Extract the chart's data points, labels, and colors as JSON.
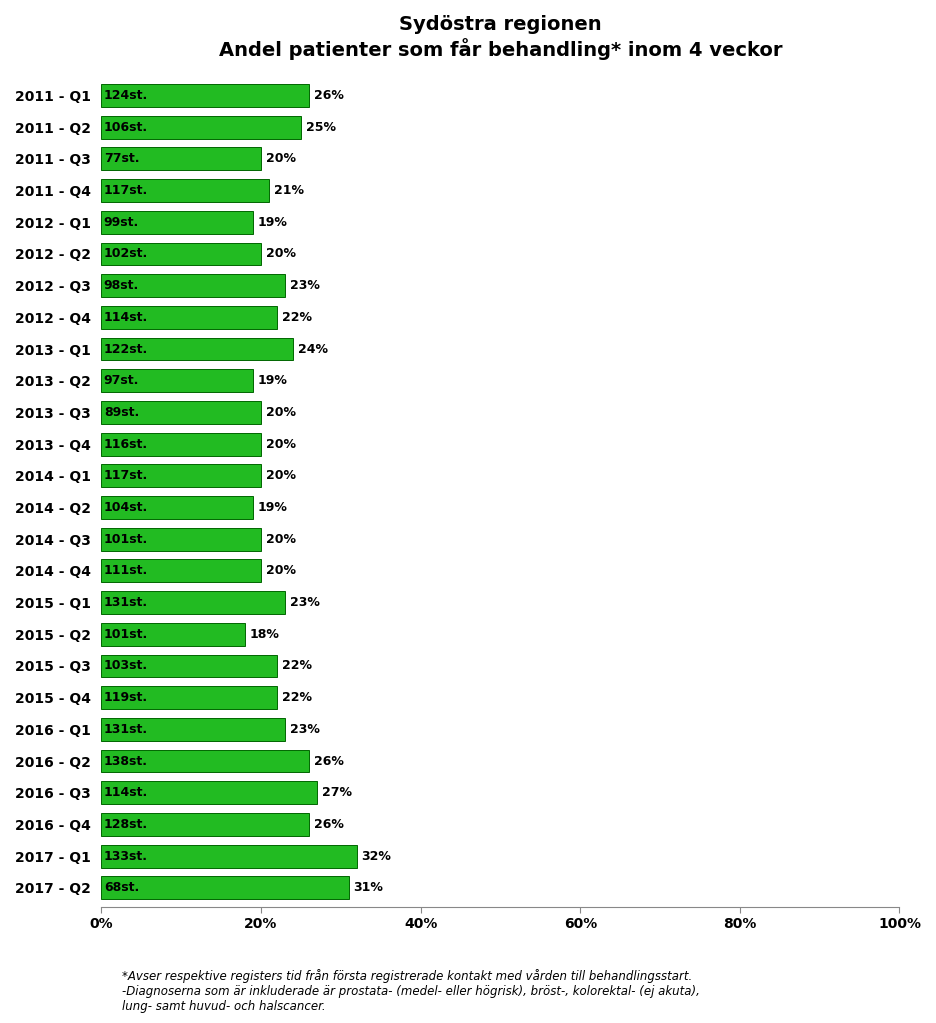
{
  "title_line1": "Sydöstra regionen",
  "title_line2": "Andel patienter som får behandling* inom 4 veckor",
  "categories": [
    "2011 - Q1",
    "2011 - Q2",
    "2011 - Q3",
    "2011 - Q4",
    "2012 - Q1",
    "2012 - Q2",
    "2012 - Q3",
    "2012 - Q4",
    "2013 - Q1",
    "2013 - Q2",
    "2013 - Q3",
    "2013 - Q4",
    "2014 - Q1",
    "2014 - Q2",
    "2014 - Q3",
    "2014 - Q4",
    "2015 - Q1",
    "2015 - Q2",
    "2015 - Q3",
    "2015 - Q4",
    "2016 - Q1",
    "2016 - Q2",
    "2016 - Q3",
    "2016 - Q4",
    "2017 - Q1",
    "2017 - Q2"
  ],
  "values": [
    26,
    25,
    20,
    21,
    19,
    20,
    23,
    22,
    24,
    19,
    20,
    20,
    20,
    19,
    20,
    20,
    23,
    18,
    22,
    22,
    23,
    26,
    27,
    26,
    32,
    31
  ],
  "counts": [
    124,
    106,
    77,
    117,
    99,
    102,
    98,
    114,
    122,
    97,
    89,
    116,
    117,
    104,
    101,
    111,
    131,
    101,
    103,
    119,
    131,
    138,
    114,
    128,
    133,
    68
  ],
  "bar_color": "#22bb22",
  "bar_edge_color": "#006600",
  "background_color": "#ffffff",
  "xlim": [
    0,
    100
  ],
  "xtick_labels": [
    "0%",
    "20%",
    "40%",
    "60%",
    "80%",
    "100%"
  ],
  "xtick_values": [
    0,
    20,
    40,
    60,
    80,
    100
  ],
  "footnote": "*Avser respektive registers tid från första registrerade kontakt med vården till behandlingsstart.\n-Diagnoserna som är inkluderade är prostata- (medel- eller högrisk), bröst-, kolorektal- (ej akuta),\nlung- samt huvud- och halscancer.",
  "title_fontsize": 14,
  "label_fontsize": 10,
  "bar_label_fontsize": 9,
  "footnote_fontsize": 8.5
}
